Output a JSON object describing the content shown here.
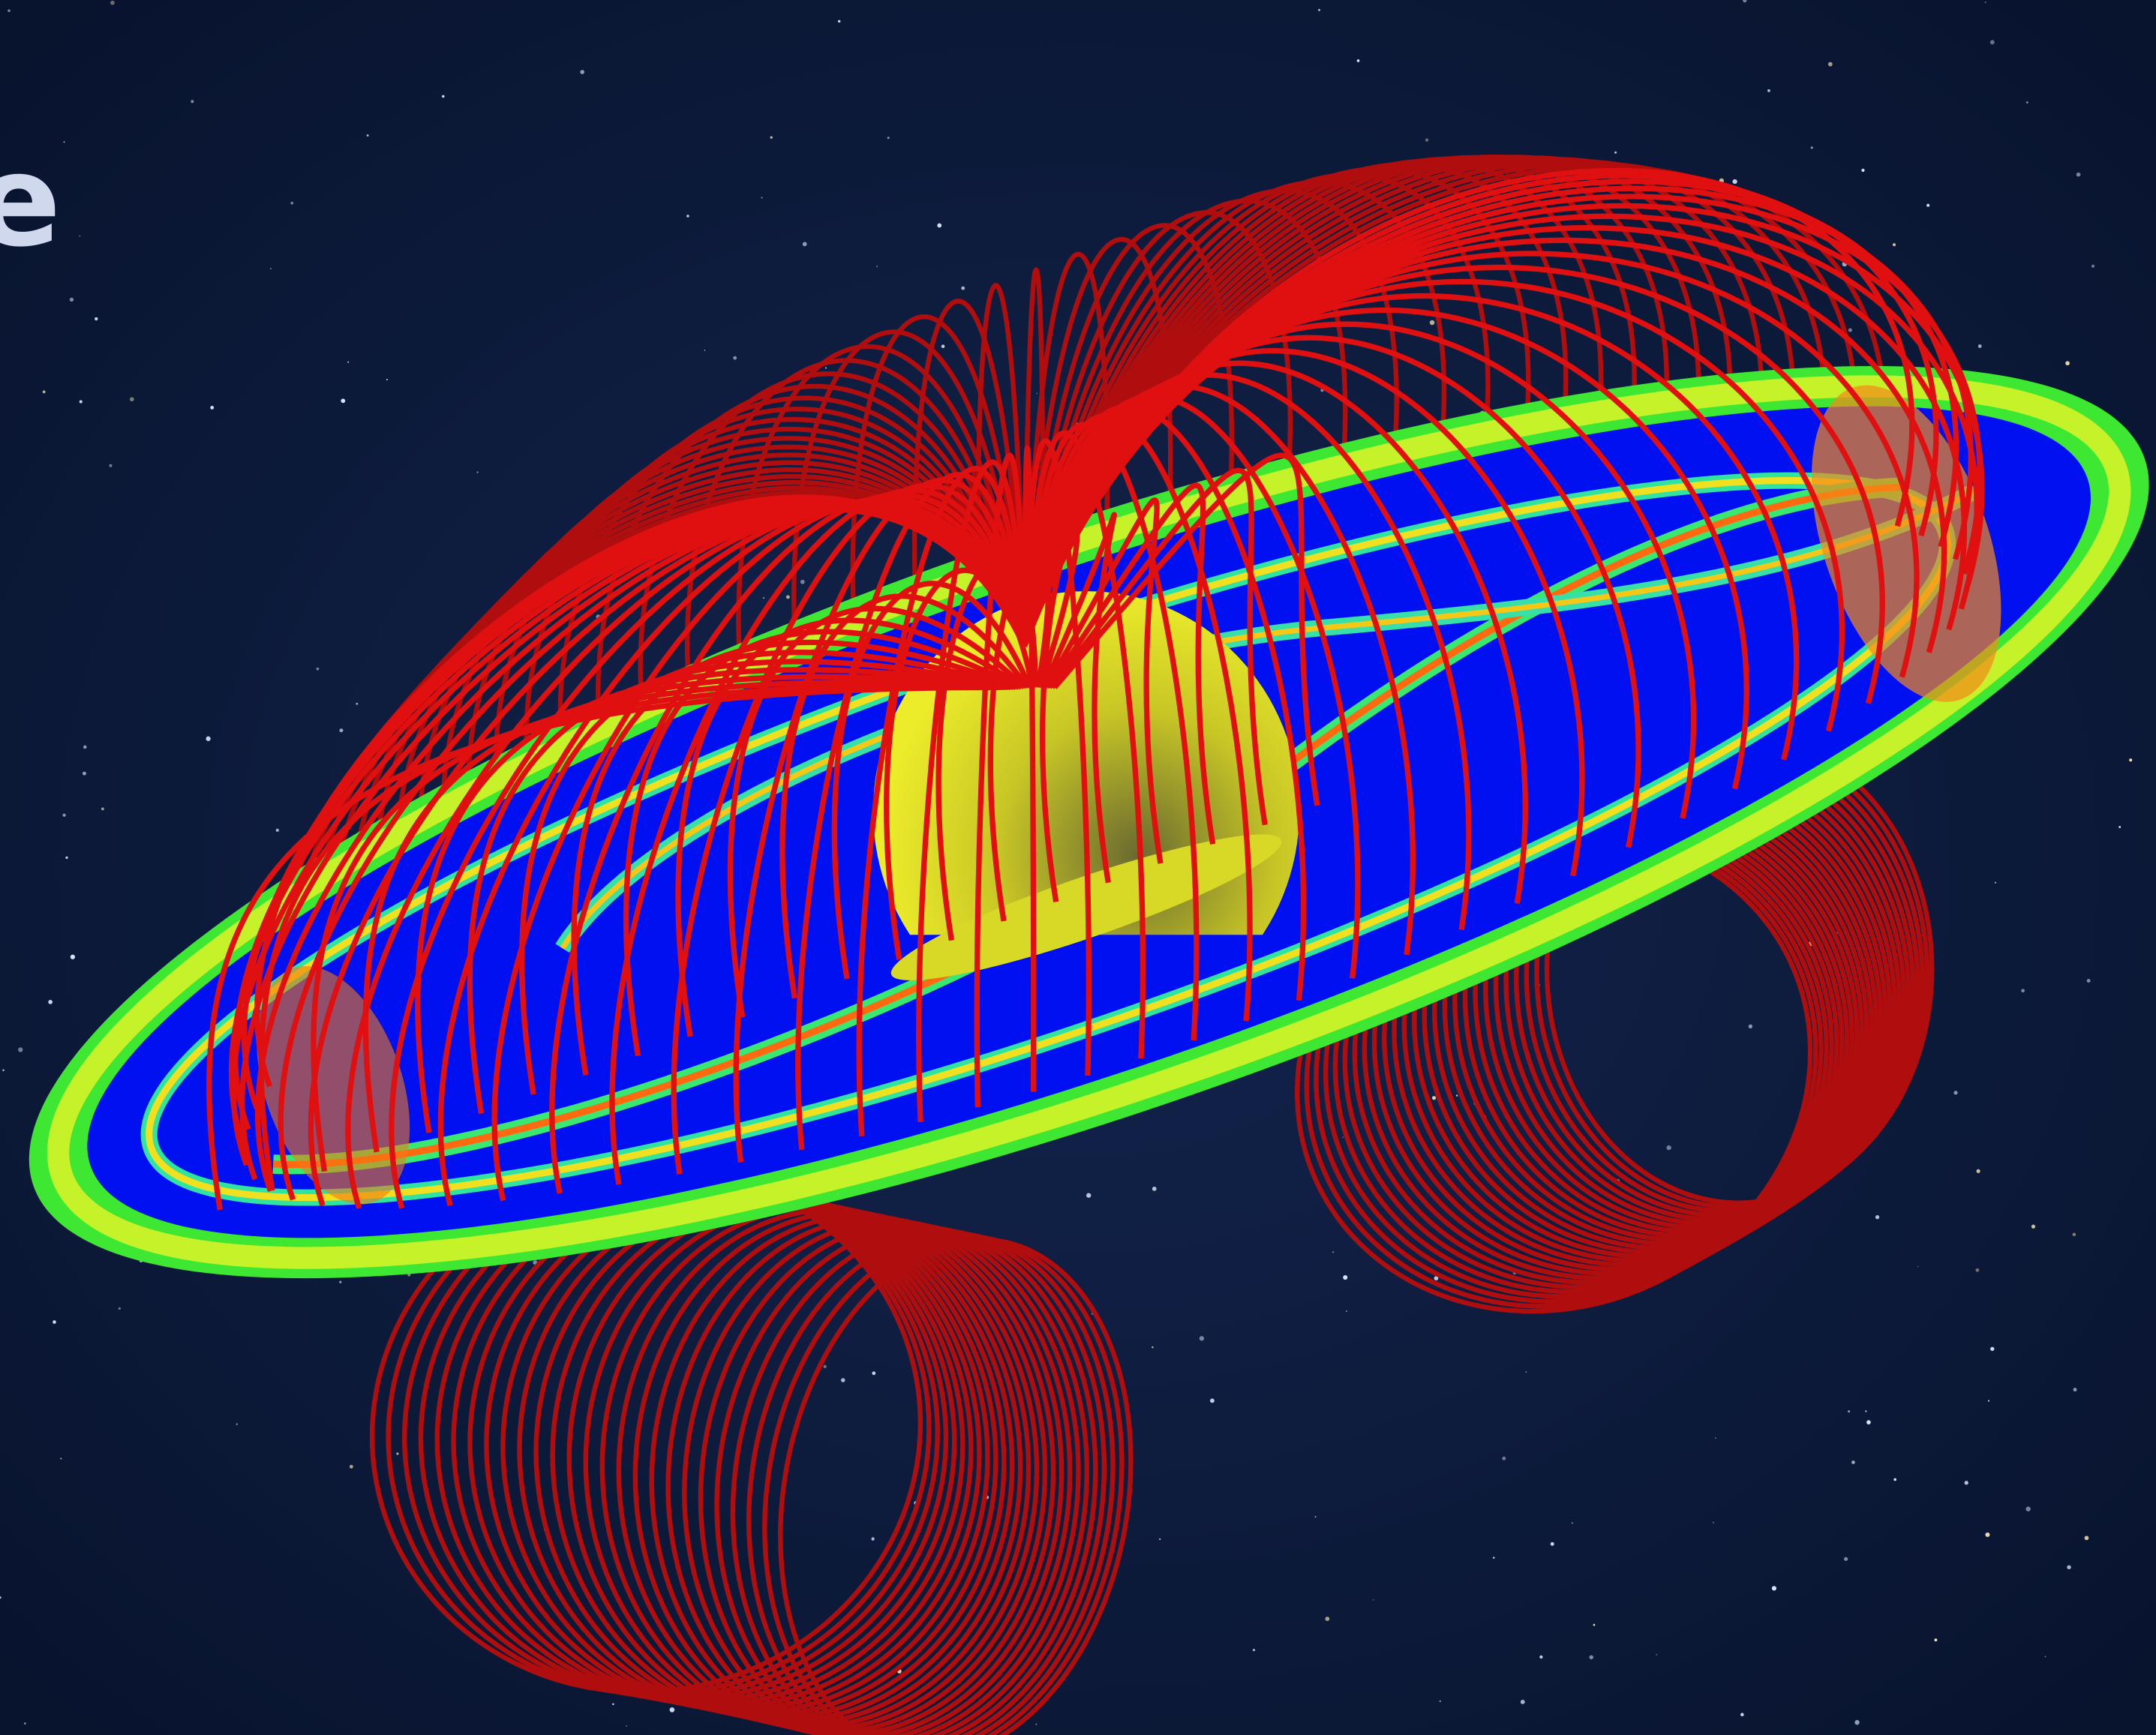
{
  "overlay": {
    "text": "e"
  }
}
